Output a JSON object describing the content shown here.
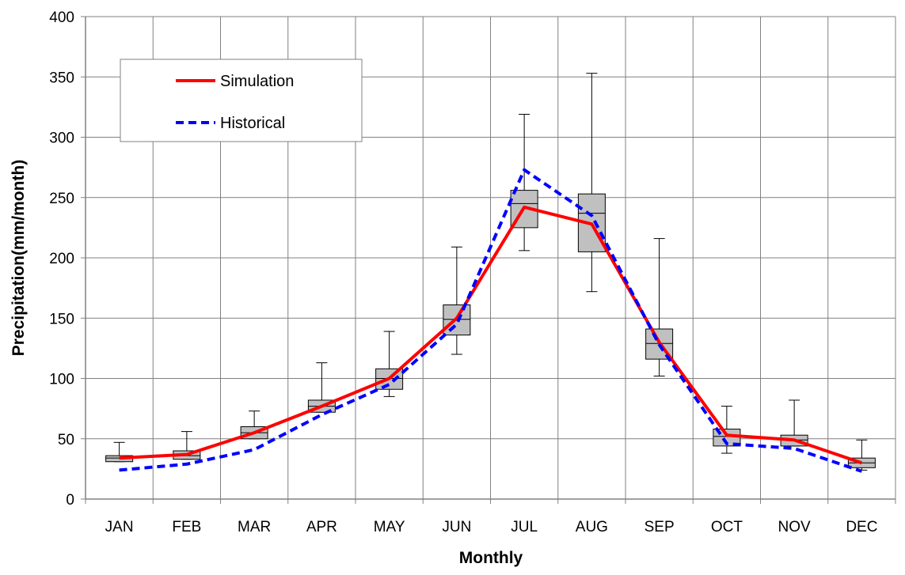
{
  "chart_data": {
    "type": "line",
    "title": "",
    "xlabel": "Monthly",
    "ylabel": "Precipitation(mm/month)",
    "ylim": [
      0,
      400
    ],
    "yticks": [
      0,
      50,
      100,
      150,
      200,
      250,
      300,
      350,
      400
    ],
    "grid": true,
    "legend_position": "top-left",
    "categories": [
      "JAN",
      "FEB",
      "MAR",
      "APR",
      "MAY",
      "JUN",
      "JUL",
      "AUG",
      "SEP",
      "OCT",
      "NOV",
      "DEC"
    ],
    "series": [
      {
        "name": "Simulation",
        "style": "solid",
        "color": "#ff0000",
        "values": [
          34,
          37,
          55,
          77,
          100,
          150,
          242,
          228,
          130,
          53,
          49,
          30
        ]
      },
      {
        "name": "Historical",
        "style": "dashed",
        "color": "#0000ff",
        "values": [
          24,
          29,
          41,
          70,
          95,
          145,
          273,
          235,
          128,
          46,
          42,
          23
        ]
      }
    ],
    "boxplots": {
      "color": "#c0c0c0",
      "items": [
        {
          "month": "JAN",
          "min": 31,
          "q1": 31,
          "median": 34,
          "q3": 36,
          "max": 47
        },
        {
          "month": "FEB",
          "min": 33,
          "q1": 33,
          "median": 36,
          "q3": 40,
          "max": 56
        },
        {
          "month": "MAR",
          "min": 50,
          "q1": 50,
          "median": 55,
          "q3": 60,
          "max": 73
        },
        {
          "month": "APR",
          "min": 72,
          "q1": 72,
          "median": 77,
          "q3": 82,
          "max": 113
        },
        {
          "month": "MAY",
          "min": 85,
          "q1": 91,
          "median": 100,
          "q3": 108,
          "max": 139
        },
        {
          "month": "JUN",
          "min": 120,
          "q1": 136,
          "median": 149,
          "q3": 161,
          "max": 209
        },
        {
          "month": "JUL",
          "min": 206,
          "q1": 225,
          "median": 245,
          "q3": 256,
          "max": 319
        },
        {
          "month": "AUG",
          "min": 172,
          "q1": 205,
          "median": 237,
          "q3": 253,
          "max": 353
        },
        {
          "month": "SEP",
          "min": 102,
          "q1": 116,
          "median": 129,
          "q3": 141,
          "max": 216
        },
        {
          "month": "OCT",
          "min": 38,
          "q1": 44,
          "median": 52,
          "q3": 58,
          "max": 77
        },
        {
          "month": "NOV",
          "min": 44,
          "q1": 44,
          "median": 49,
          "q3": 53,
          "max": 82
        },
        {
          "month": "DEC",
          "min": 24,
          "q1": 26,
          "median": 30,
          "q3": 34,
          "max": 49
        }
      ]
    }
  }
}
